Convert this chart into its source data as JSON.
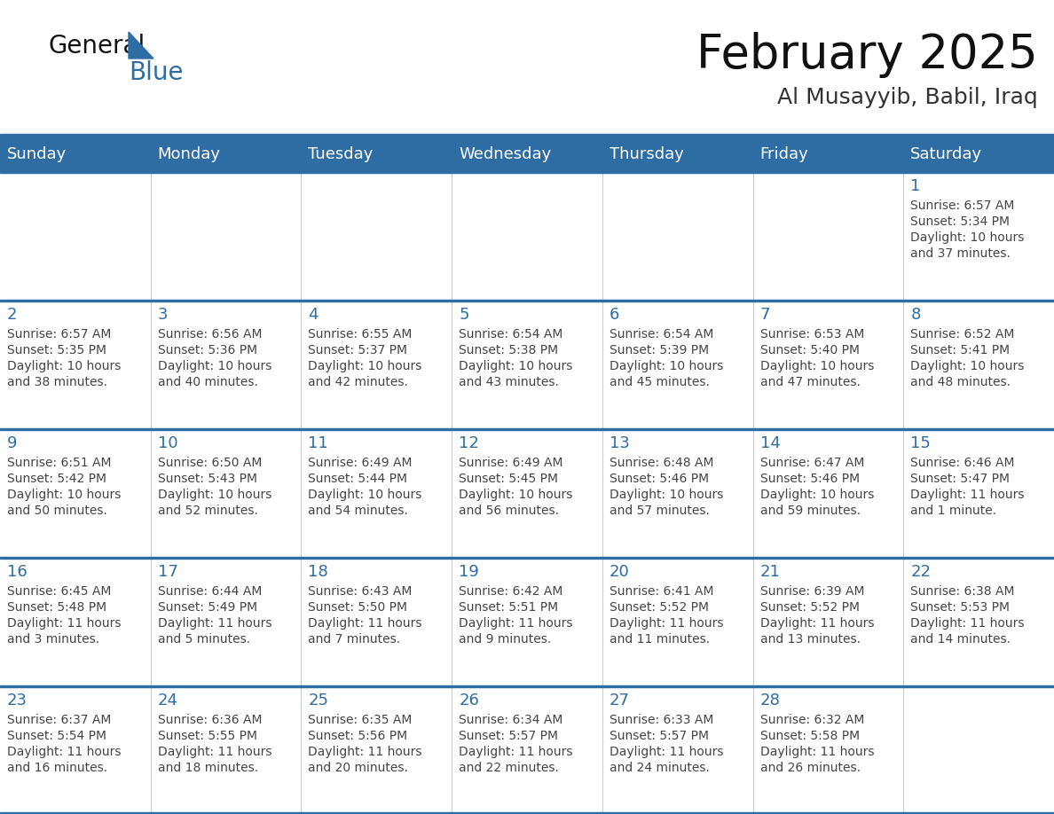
{
  "title": "February 2025",
  "subtitle": "Al Musayyib, Babil, Iraq",
  "header_bg_color": "#2E6DA4",
  "header_text_color": "#FFFFFF",
  "cell_bg_color": "#FFFFFF",
  "day_number_color": "#2E6DA4",
  "text_color": "#444444",
  "line_color": "#2E6DA4",
  "days_of_week": [
    "Sunday",
    "Monday",
    "Tuesday",
    "Wednesday",
    "Thursday",
    "Friday",
    "Saturday"
  ],
  "weeks": [
    [
      {
        "day": null,
        "info": null
      },
      {
        "day": null,
        "info": null
      },
      {
        "day": null,
        "info": null
      },
      {
        "day": null,
        "info": null
      },
      {
        "day": null,
        "info": null
      },
      {
        "day": null,
        "info": null
      },
      {
        "day": 1,
        "info": "Sunrise: 6:57 AM\nSunset: 5:34 PM\nDaylight: 10 hours\nand 37 minutes."
      }
    ],
    [
      {
        "day": 2,
        "info": "Sunrise: 6:57 AM\nSunset: 5:35 PM\nDaylight: 10 hours\nand 38 minutes."
      },
      {
        "day": 3,
        "info": "Sunrise: 6:56 AM\nSunset: 5:36 PM\nDaylight: 10 hours\nand 40 minutes."
      },
      {
        "day": 4,
        "info": "Sunrise: 6:55 AM\nSunset: 5:37 PM\nDaylight: 10 hours\nand 42 minutes."
      },
      {
        "day": 5,
        "info": "Sunrise: 6:54 AM\nSunset: 5:38 PM\nDaylight: 10 hours\nand 43 minutes."
      },
      {
        "day": 6,
        "info": "Sunrise: 6:54 AM\nSunset: 5:39 PM\nDaylight: 10 hours\nand 45 minutes."
      },
      {
        "day": 7,
        "info": "Sunrise: 6:53 AM\nSunset: 5:40 PM\nDaylight: 10 hours\nand 47 minutes."
      },
      {
        "day": 8,
        "info": "Sunrise: 6:52 AM\nSunset: 5:41 PM\nDaylight: 10 hours\nand 48 minutes."
      }
    ],
    [
      {
        "day": 9,
        "info": "Sunrise: 6:51 AM\nSunset: 5:42 PM\nDaylight: 10 hours\nand 50 minutes."
      },
      {
        "day": 10,
        "info": "Sunrise: 6:50 AM\nSunset: 5:43 PM\nDaylight: 10 hours\nand 52 minutes."
      },
      {
        "day": 11,
        "info": "Sunrise: 6:49 AM\nSunset: 5:44 PM\nDaylight: 10 hours\nand 54 minutes."
      },
      {
        "day": 12,
        "info": "Sunrise: 6:49 AM\nSunset: 5:45 PM\nDaylight: 10 hours\nand 56 minutes."
      },
      {
        "day": 13,
        "info": "Sunrise: 6:48 AM\nSunset: 5:46 PM\nDaylight: 10 hours\nand 57 minutes."
      },
      {
        "day": 14,
        "info": "Sunrise: 6:47 AM\nSunset: 5:46 PM\nDaylight: 10 hours\nand 59 minutes."
      },
      {
        "day": 15,
        "info": "Sunrise: 6:46 AM\nSunset: 5:47 PM\nDaylight: 11 hours\nand 1 minute."
      }
    ],
    [
      {
        "day": 16,
        "info": "Sunrise: 6:45 AM\nSunset: 5:48 PM\nDaylight: 11 hours\nand 3 minutes."
      },
      {
        "day": 17,
        "info": "Sunrise: 6:44 AM\nSunset: 5:49 PM\nDaylight: 11 hours\nand 5 minutes."
      },
      {
        "day": 18,
        "info": "Sunrise: 6:43 AM\nSunset: 5:50 PM\nDaylight: 11 hours\nand 7 minutes."
      },
      {
        "day": 19,
        "info": "Sunrise: 6:42 AM\nSunset: 5:51 PM\nDaylight: 11 hours\nand 9 minutes."
      },
      {
        "day": 20,
        "info": "Sunrise: 6:41 AM\nSunset: 5:52 PM\nDaylight: 11 hours\nand 11 minutes."
      },
      {
        "day": 21,
        "info": "Sunrise: 6:39 AM\nSunset: 5:52 PM\nDaylight: 11 hours\nand 13 minutes."
      },
      {
        "day": 22,
        "info": "Sunrise: 6:38 AM\nSunset: 5:53 PM\nDaylight: 11 hours\nand 14 minutes."
      }
    ],
    [
      {
        "day": 23,
        "info": "Sunrise: 6:37 AM\nSunset: 5:54 PM\nDaylight: 11 hours\nand 16 minutes."
      },
      {
        "day": 24,
        "info": "Sunrise: 6:36 AM\nSunset: 5:55 PM\nDaylight: 11 hours\nand 18 minutes."
      },
      {
        "day": 25,
        "info": "Sunrise: 6:35 AM\nSunset: 5:56 PM\nDaylight: 11 hours\nand 20 minutes."
      },
      {
        "day": 26,
        "info": "Sunrise: 6:34 AM\nSunset: 5:57 PM\nDaylight: 11 hours\nand 22 minutes."
      },
      {
        "day": 27,
        "info": "Sunrise: 6:33 AM\nSunset: 5:57 PM\nDaylight: 11 hours\nand 24 minutes."
      },
      {
        "day": 28,
        "info": "Sunrise: 6:32 AM\nSunset: 5:58 PM\nDaylight: 11 hours\nand 26 minutes."
      },
      {
        "day": null,
        "info": null
      }
    ]
  ],
  "fig_width": 11.88,
  "fig_height": 9.18,
  "dpi": 100
}
